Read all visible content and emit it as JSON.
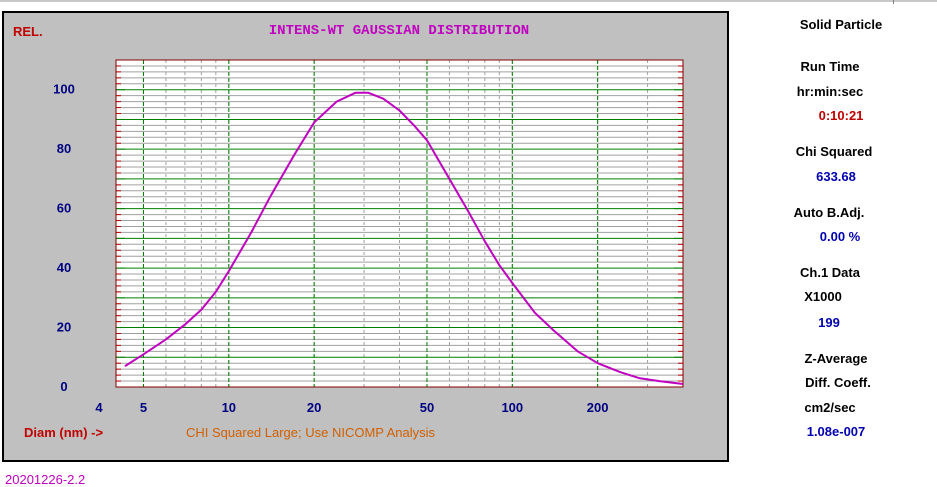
{
  "chart_data": {
    "type": "line",
    "title": "INTENS-WT GAUSSIAN DISTRIBUTION",
    "ylabel": "REL.",
    "xlabel": "Diam (nm) ->",
    "warning": "CHI Squared Large; Use NICOMP Analysis",
    "x_scale": "log",
    "xlim": [
      4,
      400
    ],
    "ylim": [
      0,
      110
    ],
    "x_ticks": [
      4,
      5,
      10,
      20,
      50,
      100,
      200
    ],
    "x_tick_labels": [
      "4",
      "5",
      "10",
      "20",
      "50",
      "100",
      "200"
    ],
    "y_ticks": [
      0,
      20,
      40,
      60,
      80,
      100
    ],
    "y_tick_labels": [
      "0",
      "20",
      "40",
      "60",
      "80",
      "100"
    ],
    "grid": true,
    "series": [
      {
        "color": "#c000c0",
        "x": [
          4.3,
          5,
          6,
          7,
          8,
          9,
          10,
          12,
          14,
          17,
          20,
          24,
          28,
          31,
          35,
          40,
          45,
          50,
          60,
          70,
          80,
          90,
          100,
          120,
          140,
          170,
          200,
          240,
          280,
          330,
          400
        ],
        "y": [
          7,
          11,
          16,
          21,
          26,
          32,
          39,
          52,
          64,
          78,
          89,
          96,
          99,
          99,
          97,
          93,
          88,
          83,
          70,
          59,
          49,
          41,
          35,
          25,
          19,
          12,
          8,
          5,
          3,
          2,
          1
        ]
      }
    ]
  },
  "sidebar": {
    "particle_type": "Solid Particle",
    "run_time_label": "Run Time",
    "run_time_units": "hr:min:sec",
    "run_time_value": "0:10:21",
    "chi_label": "Chi Squared",
    "chi_value": "633.68",
    "auto_label": "Auto B.Adj.",
    "auto_value": "0.00 %",
    "ch1_label": "Ch.1 Data",
    "ch1_mult": "X1000",
    "ch1_value": "199",
    "z_label_1": "Z-Average",
    "z_label_2": "Diff. Coeff.",
    "z_units": "cm2/sec",
    "z_value": "1.08e-007"
  },
  "footer": {
    "id": "20201226-2.2"
  },
  "colors": {
    "panel_bg": "#c0c0c0",
    "plot_bg": "#ffffff",
    "major_grid": "#008000",
    "minor_grid": "#a0a0a0",
    "curve": "#c000c0",
    "title": "#c000c0",
    "axis_text": "#000080",
    "red_text": "#c00000",
    "warning_text": "#d06000"
  }
}
